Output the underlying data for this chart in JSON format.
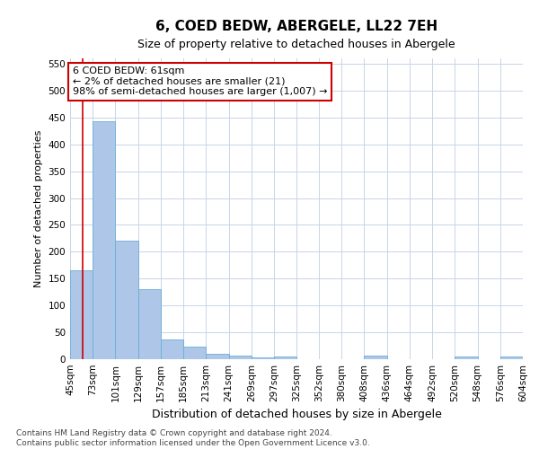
{
  "title": "6, COED BEDW, ABERGELE, LL22 7EH",
  "subtitle": "Size of property relative to detached houses in Abergele",
  "xlabel": "Distribution of detached houses by size in Abergele",
  "ylabel": "Number of detached properties",
  "bar_color": "#aec6e8",
  "bar_edge_color": "#6baed6",
  "background_color": "#ffffff",
  "grid_color": "#c8d4e8",
  "annotation_text": "6 COED BEDW: 61sqm\n← 2% of detached houses are smaller (21)\n98% of semi-detached houses are larger (1,007) →",
  "annotation_box_color": "#ffffff",
  "annotation_border_color": "#cc0000",
  "vline_x": 61,
  "vline_color": "#cc0000",
  "bins": [
    45,
    73,
    101,
    129,
    157,
    185,
    213,
    241,
    269,
    297,
    325,
    352,
    380,
    408,
    436,
    464,
    492,
    520,
    548,
    576,
    604
  ],
  "bin_labels": [
    "45sqm",
    "73sqm",
    "101sqm",
    "129sqm",
    "157sqm",
    "185sqm",
    "213sqm",
    "241sqm",
    "269sqm",
    "297sqm",
    "325sqm",
    "352sqm",
    "380sqm",
    "408sqm",
    "436sqm",
    "464sqm",
    "492sqm",
    "520sqm",
    "548sqm",
    "576sqm",
    "604sqm"
  ],
  "values": [
    165,
    443,
    221,
    130,
    37,
    24,
    10,
    6,
    4,
    5,
    0,
    0,
    0,
    6,
    0,
    0,
    0,
    5,
    0,
    5
  ],
  "ylim": [
    0,
    560
  ],
  "yticks": [
    0,
    50,
    100,
    150,
    200,
    250,
    300,
    350,
    400,
    450,
    500,
    550
  ],
  "footer": "Contains HM Land Registry data © Crown copyright and database right 2024.\nContains public sector information licensed under the Open Government Licence v3.0.",
  "title_fontsize": 11,
  "subtitle_fontsize": 9,
  "xlabel_fontsize": 9,
  "ylabel_fontsize": 8,
  "tick_fontsize": 7.5,
  "footer_fontsize": 6.5,
  "ann_fontsize": 8
}
